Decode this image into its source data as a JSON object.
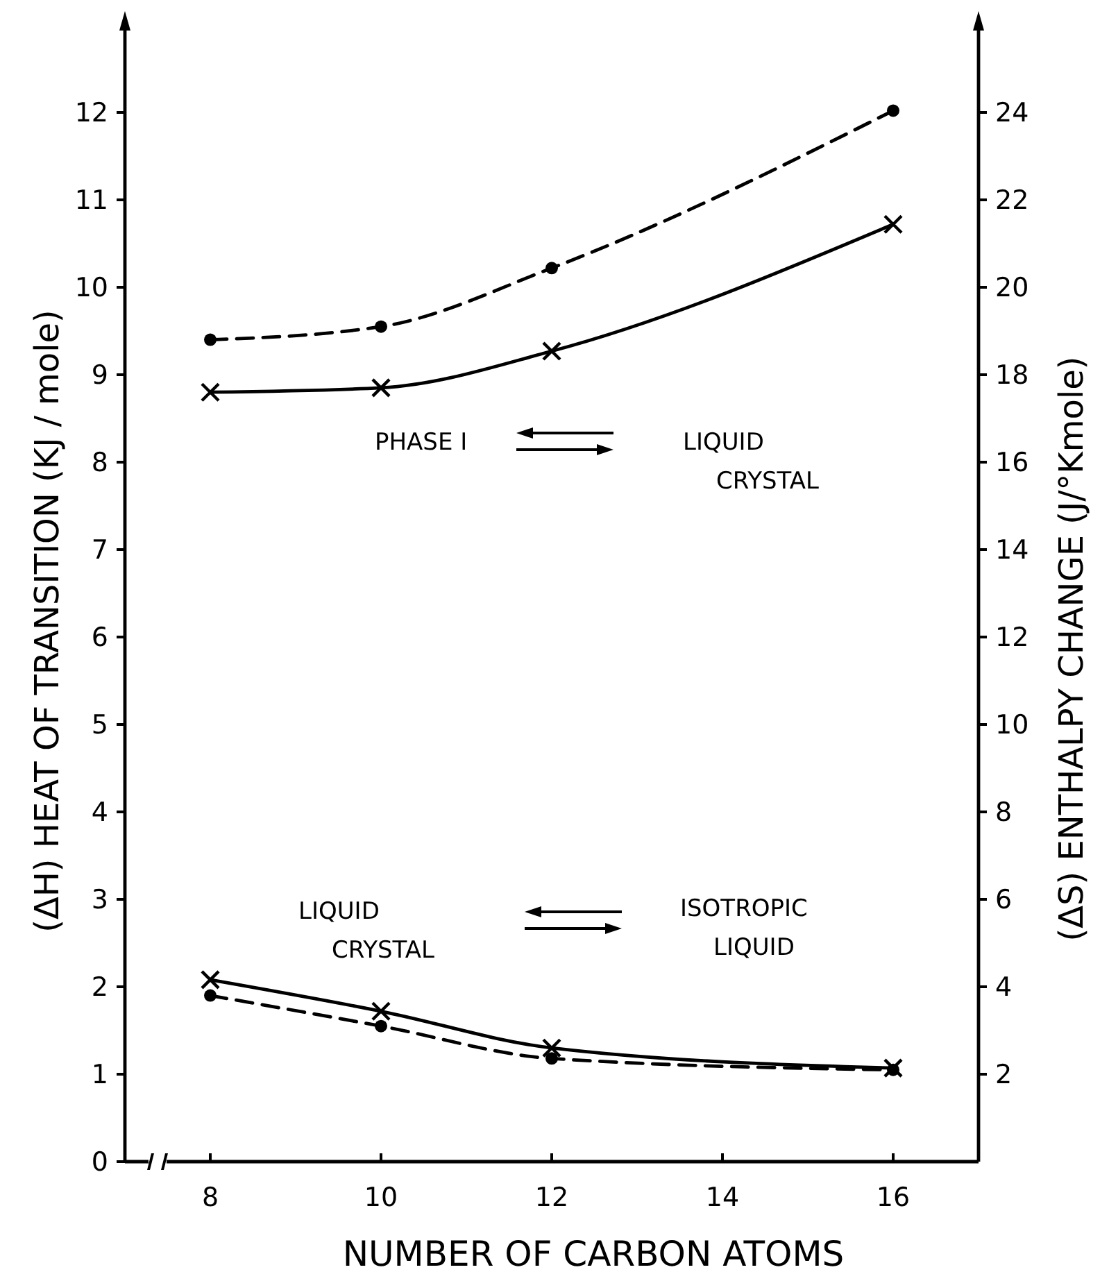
{
  "chart_data": {
    "type": "line",
    "xlabel": "NUMBER OF CARBON ATOMS",
    "ylabel": "(ΔH) HEAT OF TRANSITION  (KJ / mole)",
    "y2label": "(ΔS)  ENTHALPY CHANGE  (J/°Kmole)",
    "x": [
      8,
      10,
      12,
      16
    ],
    "xlim": [
      7,
      17
    ],
    "xticks": [
      8,
      10,
      12,
      14,
      16
    ],
    "ylim": [
      0,
      13
    ],
    "yticks": [
      0,
      1,
      2,
      3,
      4,
      5,
      6,
      7,
      8,
      9,
      10,
      11,
      12
    ],
    "y2lim": [
      0,
      26
    ],
    "y2ticks": [
      2,
      4,
      6,
      8,
      10,
      12,
      14,
      16,
      18,
      20,
      22,
      24
    ],
    "series": [
      {
        "color": "#000000",
        "values": [
          9.4,
          9.55,
          10.22,
          12.02
        ],
        "marker": "circle",
        "line_style": "dashed"
      },
      {
        "color": "#000000",
        "values": [
          8.8,
          8.85,
          9.27,
          10.72
        ],
        "marker": "cross",
        "line_style": "solid"
      },
      {
        "color": "#000000",
        "values": [
          2.08,
          1.72,
          1.3,
          1.07
        ],
        "marker": "cross",
        "line_style": "solid"
      },
      {
        "color": "#000000",
        "values": [
          1.9,
          1.55,
          1.18,
          1.05
        ],
        "marker": "circle",
        "line_style": "dashed"
      }
    ],
    "annotations": [
      "PHASE I",
      "LIQUID\nCRYSTAL",
      "LIQUID\nCRYSTAL",
      "ISOTROPIC\nLIQUID"
    ]
  }
}
